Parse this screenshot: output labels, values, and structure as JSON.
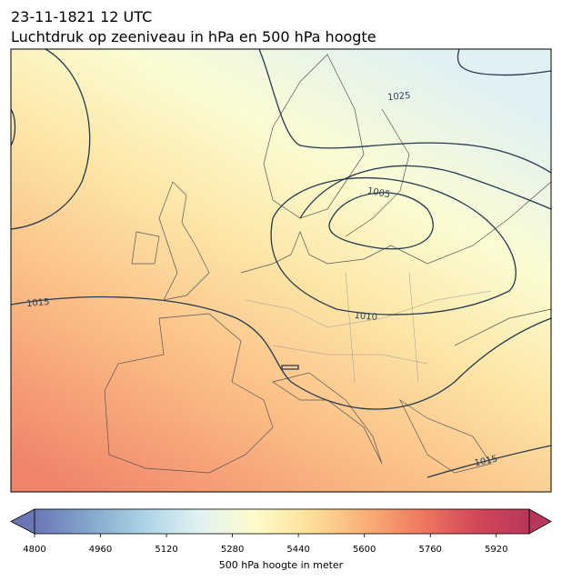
{
  "header": {
    "title": "23-11-1821 12 UTC",
    "subtitle": "Luchtdruk op zeeniveau in hPa en 500 hPa hoogte"
  },
  "map": {
    "contour_labels": [
      "1025",
      "1005",
      "1010",
      "1015",
      "1015"
    ]
  },
  "colorbar": {
    "label": "500 hPa hoogte in meter",
    "lim": [
      4800,
      6000
    ],
    "ticks": [
      4800,
      4960,
      5120,
      5280,
      5440,
      5600,
      5760,
      5920
    ],
    "colors": [
      "#6b76b4",
      "#84a7cc",
      "#acd3e5",
      "#e1f2f3",
      "#fdfccb",
      "#fde09a",
      "#f9b178",
      "#ef7b60",
      "#d3485a",
      "#b7375a"
    ]
  }
}
